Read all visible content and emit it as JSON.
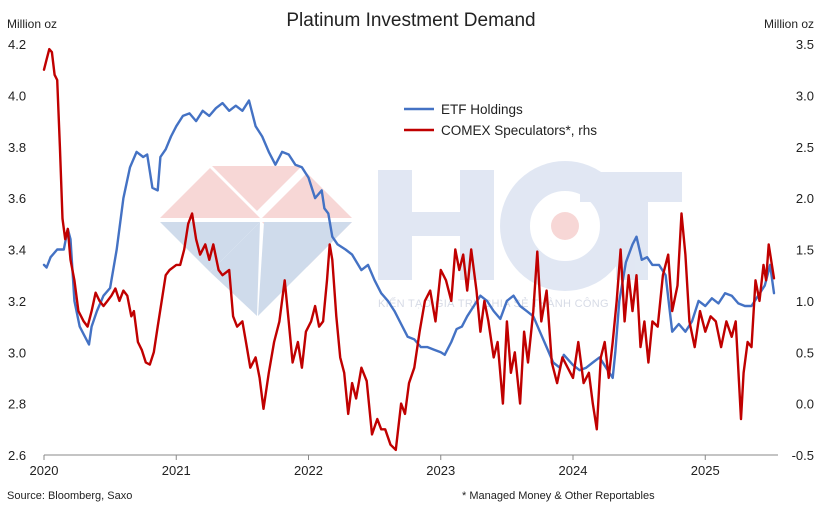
{
  "chart_data": {
    "type": "line",
    "title": "Platinum Investment Demand",
    "y_left_unit": "Million oz",
    "y_right_unit": "Million oz",
    "y_left_range": [
      2.6,
      4.2
    ],
    "y_right_range": [
      -0.5,
      3.5
    ],
    "y_left_ticks": [
      "2.6",
      "2.8",
      "3.0",
      "3.2",
      "3.4",
      "3.6",
      "3.8",
      "4.0",
      "4.2"
    ],
    "y_right_ticks": [
      "-0.5",
      "0.0",
      "0.5",
      "1.0",
      "1.5",
      "2.0",
      "2.5",
      "3.0",
      "3.5"
    ],
    "x_range": [
      2020.0,
      2025.55
    ],
    "x_ticks": [
      "2020",
      "2021",
      "2022",
      "2023",
      "2024",
      "2025"
    ],
    "grid": false,
    "legend_position": "top-center",
    "series": [
      {
        "name": "ETF Holdings",
        "axis": "left",
        "color": "#4472c4",
        "points": [
          [
            2020.0,
            3.34
          ],
          [
            2020.02,
            3.33
          ],
          [
            2020.05,
            3.37
          ],
          [
            2020.1,
            3.4
          ],
          [
            2020.15,
            3.4
          ],
          [
            2020.18,
            3.48
          ],
          [
            2020.2,
            3.44
          ],
          [
            2020.23,
            3.2
          ],
          [
            2020.27,
            3.1
          ],
          [
            2020.3,
            3.07
          ],
          [
            2020.34,
            3.03
          ],
          [
            2020.36,
            3.1
          ],
          [
            2020.4,
            3.16
          ],
          [
            2020.45,
            3.22
          ],
          [
            2020.5,
            3.25
          ],
          [
            2020.55,
            3.4
          ],
          [
            2020.6,
            3.6
          ],
          [
            2020.65,
            3.72
          ],
          [
            2020.7,
            3.78
          ],
          [
            2020.75,
            3.76
          ],
          [
            2020.78,
            3.77
          ],
          [
            2020.82,
            3.64
          ],
          [
            2020.86,
            3.63
          ],
          [
            2020.88,
            3.76
          ],
          [
            2020.92,
            3.79
          ],
          [
            2020.96,
            3.84
          ],
          [
            2021.0,
            3.88
          ],
          [
            2021.05,
            3.92
          ],
          [
            2021.1,
            3.93
          ],
          [
            2021.15,
            3.9
          ],
          [
            2021.2,
            3.94
          ],
          [
            2021.25,
            3.92
          ],
          [
            2021.3,
            3.95
          ],
          [
            2021.35,
            3.97
          ],
          [
            2021.4,
            3.94
          ],
          [
            2021.45,
            3.96
          ],
          [
            2021.5,
            3.94
          ],
          [
            2021.55,
            3.98
          ],
          [
            2021.6,
            3.88
          ],
          [
            2021.65,
            3.84
          ],
          [
            2021.7,
            3.78
          ],
          [
            2021.75,
            3.73
          ],
          [
            2021.8,
            3.78
          ],
          [
            2021.85,
            3.77
          ],
          [
            2021.9,
            3.73
          ],
          [
            2021.95,
            3.72
          ],
          [
            2022.0,
            3.68
          ],
          [
            2022.05,
            3.6
          ],
          [
            2022.1,
            3.63
          ],
          [
            2022.12,
            3.56
          ],
          [
            2022.15,
            3.54
          ],
          [
            2022.18,
            3.45
          ],
          [
            2022.22,
            3.42
          ],
          [
            2022.28,
            3.4
          ],
          [
            2022.33,
            3.38
          ],
          [
            2022.4,
            3.32
          ],
          [
            2022.45,
            3.34
          ],
          [
            2022.5,
            3.28
          ],
          [
            2022.55,
            3.23
          ],
          [
            2022.6,
            3.2
          ],
          [
            2022.65,
            3.16
          ],
          [
            2022.7,
            3.11
          ],
          [
            2022.75,
            3.06
          ],
          [
            2022.8,
            3.05
          ],
          [
            2022.85,
            3.02
          ],
          [
            2022.9,
            3.02
          ],
          [
            2022.95,
            3.01
          ],
          [
            2023.0,
            3.0
          ],
          [
            2023.03,
            2.99
          ],
          [
            2023.08,
            3.04
          ],
          [
            2023.12,
            3.09
          ],
          [
            2023.16,
            3.1
          ],
          [
            2023.2,
            3.14
          ],
          [
            2023.25,
            3.18
          ],
          [
            2023.3,
            3.22
          ],
          [
            2023.35,
            3.2
          ],
          [
            2023.4,
            3.16
          ],
          [
            2023.45,
            3.13
          ],
          [
            2023.5,
            3.2
          ],
          [
            2023.55,
            3.22
          ],
          [
            2023.6,
            3.18
          ],
          [
            2023.65,
            3.16
          ],
          [
            2023.7,
            3.14
          ],
          [
            2023.75,
            3.08
          ],
          [
            2023.8,
            3.02
          ],
          [
            2023.85,
            2.96
          ],
          [
            2023.9,
            2.94
          ],
          [
            2023.93,
            2.99
          ],
          [
            2024.0,
            2.95
          ],
          [
            2024.05,
            2.93
          ],
          [
            2024.1,
            2.94
          ],
          [
            2024.15,
            2.96
          ],
          [
            2024.2,
            2.98
          ],
          [
            2024.25,
            2.94
          ],
          [
            2024.3,
            2.9
          ],
          [
            2024.32,
            3.0
          ],
          [
            2024.35,
            3.2
          ],
          [
            2024.4,
            3.35
          ],
          [
            2024.45,
            3.42
          ],
          [
            2024.48,
            3.45
          ],
          [
            2024.52,
            3.36
          ],
          [
            2024.56,
            3.37
          ],
          [
            2024.6,
            3.34
          ],
          [
            2024.65,
            3.34
          ],
          [
            2024.7,
            3.3
          ],
          [
            2024.75,
            3.08
          ],
          [
            2024.8,
            3.11
          ],
          [
            2024.85,
            3.08
          ],
          [
            2024.9,
            3.12
          ],
          [
            2024.95,
            3.2
          ],
          [
            2025.0,
            3.18
          ],
          [
            2025.05,
            3.21
          ],
          [
            2025.1,
            3.19
          ],
          [
            2025.15,
            3.23
          ],
          [
            2025.2,
            3.22
          ],
          [
            2025.25,
            3.19
          ],
          [
            2025.3,
            3.18
          ],
          [
            2025.35,
            3.18
          ],
          [
            2025.4,
            3.22
          ],
          [
            2025.45,
            3.26
          ],
          [
            2025.49,
            3.34
          ],
          [
            2025.52,
            3.23
          ]
        ]
      },
      {
        "name": "COMEX Speculators*, rhs",
        "axis": "right",
        "color": "#c00000",
        "points": [
          [
            2020.0,
            3.25
          ],
          [
            2020.02,
            3.35
          ],
          [
            2020.04,
            3.45
          ],
          [
            2020.06,
            3.42
          ],
          [
            2020.08,
            3.2
          ],
          [
            2020.1,
            3.15
          ],
          [
            2020.12,
            2.5
          ],
          [
            2020.14,
            1.8
          ],
          [
            2020.16,
            1.6
          ],
          [
            2020.18,
            1.7
          ],
          [
            2020.2,
            1.4
          ],
          [
            2020.23,
            1.2
          ],
          [
            2020.26,
            0.9
          ],
          [
            2020.3,
            0.8
          ],
          [
            2020.33,
            0.75
          ],
          [
            2020.36,
            0.9
          ],
          [
            2020.39,
            1.08
          ],
          [
            2020.42,
            1.0
          ],
          [
            2020.45,
            0.95
          ],
          [
            2020.48,
            1.0
          ],
          [
            2020.51,
            1.05
          ],
          [
            2020.54,
            1.12
          ],
          [
            2020.57,
            1.0
          ],
          [
            2020.6,
            1.1
          ],
          [
            2020.63,
            1.05
          ],
          [
            2020.66,
            0.85
          ],
          [
            2020.68,
            0.9
          ],
          [
            2020.71,
            0.6
          ],
          [
            2020.74,
            0.52
          ],
          [
            2020.77,
            0.4
          ],
          [
            2020.8,
            0.38
          ],
          [
            2020.83,
            0.5
          ],
          [
            2020.86,
            0.75
          ],
          [
            2020.89,
            1.0
          ],
          [
            2020.92,
            1.25
          ],
          [
            2020.95,
            1.3
          ],
          [
            2021.0,
            1.35
          ],
          [
            2021.03,
            1.35
          ],
          [
            2021.06,
            1.5
          ],
          [
            2021.09,
            1.75
          ],
          [
            2021.12,
            1.85
          ],
          [
            2021.15,
            1.6
          ],
          [
            2021.18,
            1.45
          ],
          [
            2021.22,
            1.55
          ],
          [
            2021.25,
            1.4
          ],
          [
            2021.28,
            1.55
          ],
          [
            2021.32,
            1.3
          ],
          [
            2021.35,
            1.25
          ],
          [
            2021.4,
            1.3
          ],
          [
            2021.43,
            0.85
          ],
          [
            2021.46,
            0.75
          ],
          [
            2021.5,
            0.8
          ],
          [
            2021.53,
            0.58
          ],
          [
            2021.56,
            0.35
          ],
          [
            2021.6,
            0.45
          ],
          [
            2021.63,
            0.25
          ],
          [
            2021.66,
            -0.05
          ],
          [
            2021.7,
            0.3
          ],
          [
            2021.74,
            0.6
          ],
          [
            2021.78,
            0.8
          ],
          [
            2021.82,
            1.2
          ],
          [
            2021.85,
            0.8
          ],
          [
            2021.88,
            0.4
          ],
          [
            2021.92,
            0.6
          ],
          [
            2021.95,
            0.35
          ],
          [
            2021.98,
            0.7
          ],
          [
            2022.02,
            0.8
          ],
          [
            2022.05,
            0.95
          ],
          [
            2022.08,
            0.75
          ],
          [
            2022.11,
            0.8
          ],
          [
            2022.14,
            1.2
          ],
          [
            2022.16,
            1.55
          ],
          [
            2022.18,
            1.4
          ],
          [
            2022.21,
            0.85
          ],
          [
            2022.24,
            0.45
          ],
          [
            2022.27,
            0.3
          ],
          [
            2022.3,
            -0.1
          ],
          [
            2022.33,
            0.2
          ],
          [
            2022.36,
            0.05
          ],
          [
            2022.4,
            0.35
          ],
          [
            2022.44,
            0.22
          ],
          [
            2022.48,
            -0.3
          ],
          [
            2022.52,
            -0.15
          ],
          [
            2022.55,
            -0.25
          ],
          [
            2022.58,
            -0.25
          ],
          [
            2022.62,
            -0.4
          ],
          [
            2022.66,
            -0.45
          ],
          [
            2022.7,
            0.0
          ],
          [
            2022.73,
            -0.1
          ],
          [
            2022.76,
            0.2
          ],
          [
            2022.8,
            0.35
          ],
          [
            2022.84,
            0.7
          ],
          [
            2022.88,
            1.0
          ],
          [
            2022.92,
            1.1
          ],
          [
            2022.96,
            0.8
          ],
          [
            2023.0,
            1.3
          ],
          [
            2023.04,
            1.2
          ],
          [
            2023.08,
            1.0
          ],
          [
            2023.11,
            1.5
          ],
          [
            2023.14,
            1.3
          ],
          [
            2023.17,
            1.45
          ],
          [
            2023.2,
            1.1
          ],
          [
            2023.23,
            1.5
          ],
          [
            2023.27,
            1.1
          ],
          [
            2023.3,
            0.7
          ],
          [
            2023.33,
            1.0
          ],
          [
            2023.36,
            0.8
          ],
          [
            2023.4,
            0.45
          ],
          [
            2023.43,
            0.6
          ],
          [
            2023.47,
            0.0
          ],
          [
            2023.5,
            0.8
          ],
          [
            2023.53,
            0.3
          ],
          [
            2023.56,
            0.5
          ],
          [
            2023.6,
            0.0
          ],
          [
            2023.63,
            0.7
          ],
          [
            2023.66,
            0.4
          ],
          [
            2023.7,
            0.9
          ],
          [
            2023.73,
            1.48
          ],
          [
            2023.76,
            0.8
          ],
          [
            2023.8,
            1.1
          ],
          [
            2023.84,
            0.4
          ],
          [
            2023.88,
            0.2
          ],
          [
            2023.92,
            0.45
          ],
          [
            2023.96,
            0.35
          ],
          [
            2024.0,
            0.25
          ],
          [
            2024.04,
            0.6
          ],
          [
            2024.08,
            0.2
          ],
          [
            2024.12,
            0.3
          ],
          [
            2024.15,
            0.0
          ],
          [
            2024.18,
            -0.25
          ],
          [
            2024.21,
            0.45
          ],
          [
            2024.24,
            0.6
          ],
          [
            2024.27,
            0.25
          ],
          [
            2024.3,
            0.6
          ],
          [
            2024.33,
            1.0
          ],
          [
            2024.36,
            1.5
          ],
          [
            2024.39,
            0.8
          ],
          [
            2024.42,
            1.25
          ],
          [
            2024.45,
            0.9
          ],
          [
            2024.48,
            1.25
          ],
          [
            2024.51,
            0.55
          ],
          [
            2024.54,
            0.8
          ],
          [
            2024.57,
            0.4
          ],
          [
            2024.6,
            0.8
          ],
          [
            2024.64,
            0.75
          ],
          [
            2024.68,
            1.25
          ],
          [
            2024.72,
            1.45
          ],
          [
            2024.75,
            0.9
          ],
          [
            2024.79,
            1.15
          ],
          [
            2024.82,
            1.85
          ],
          [
            2024.85,
            1.45
          ],
          [
            2024.88,
            0.8
          ],
          [
            2024.92,
            0.55
          ],
          [
            2024.96,
            0.9
          ],
          [
            2025.0,
            0.7
          ],
          [
            2025.04,
            0.85
          ],
          [
            2025.08,
            0.8
          ],
          [
            2025.12,
            0.55
          ],
          [
            2025.16,
            0.8
          ],
          [
            2025.2,
            0.65
          ],
          [
            2025.23,
            0.8
          ],
          [
            2025.27,
            -0.15
          ],
          [
            2025.29,
            0.3
          ],
          [
            2025.32,
            0.6
          ],
          [
            2025.35,
            0.55
          ],
          [
            2025.38,
            1.2
          ],
          [
            2025.41,
            1.0
          ],
          [
            2025.44,
            1.35
          ],
          [
            2025.46,
            1.2
          ],
          [
            2025.48,
            1.55
          ],
          [
            2025.5,
            1.38
          ],
          [
            2025.52,
            1.22
          ]
        ]
      }
    ],
    "footnotes": {
      "source": "Source: Bloomberg, Saxo",
      "note": "* Managed Money & Other Reportables"
    }
  },
  "watermark": {
    "logo": "HCT",
    "tagline": "KIẾN TẠO GIÁ TRỊ, CHIA SẺ THÀNH CÔNG"
  }
}
